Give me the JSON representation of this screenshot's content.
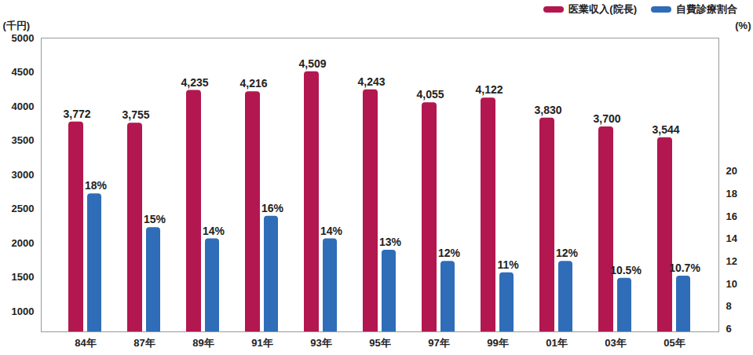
{
  "chart_data": {
    "type": "bar",
    "categories": [
      "84年",
      "87年",
      "89年",
      "91年",
      "93年",
      "95年",
      "97年",
      "99年",
      "01年",
      "03年",
      "05年"
    ],
    "series": [
      {
        "name": "医業収入(院長)",
        "color": "#b3174f",
        "values": [
          3772,
          3755,
          4235,
          4216,
          4509,
          4243,
          4055,
          4122,
          3830,
          3700,
          3544
        ],
        "value_labels": [
          "3,772",
          "3,755",
          "4,235",
          "4,216",
          "4,509",
          "4,243",
          "4,055",
          "4,122",
          "3,830",
          "3,700",
          "3,544"
        ]
      },
      {
        "name": "自費診療割合",
        "color": "#2f6db8",
        "axis": "y2",
        "values": [
          18,
          15,
          14,
          16,
          14,
          13,
          12,
          11,
          12,
          10.5,
          10.7
        ],
        "value_labels": [
          "18%",
          "15%",
          "14%",
          "16%",
          "14%",
          "13%",
          "12%",
          "11%",
          "12%",
          "10.5%",
          "10.7%"
        ]
      }
    ],
    "ylabel": "(千円)",
    "y2label": "(%)",
    "ylim": [
      700,
      5000
    ],
    "yticks": [
      1000,
      1500,
      2000,
      2500,
      3000,
      3500,
      4000,
      4500,
      5000
    ],
    "y2lim": [
      5.75,
      31.8
    ],
    "y2ticks": [
      6,
      8,
      10,
      12,
      14,
      16,
      18,
      20
    ],
    "data_labels": true,
    "legend": "top-right"
  }
}
